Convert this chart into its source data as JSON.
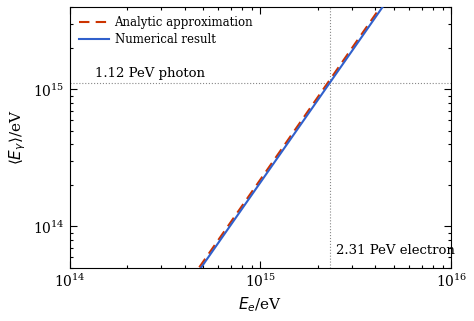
{
  "xlim": [
    100000000000000.0,
    1e+16
  ],
  "ylim": [
    50000000000000.0,
    4000000000000000.0
  ],
  "xlabel": "$E_e$/eV",
  "ylabel": "$\\langle E_\\gamma \\rangle$/eV",
  "legend_numerical": "Numerical result",
  "legend_analytic": "Analytic approximation",
  "annotation_photon": "1.12 PeV photon",
  "annotation_electron": "2.31 PeV electron",
  "vline_x": 2310000000000000.0,
  "hline_y": 1120000000000000.0,
  "numerical_color": "#3060cc",
  "analytic_color": "#cc3300",
  "dotted_color": "#888888",
  "bg_color": "#ffffff",
  "figsize": [
    4.74,
    3.21
  ],
  "dpi": 100,
  "x_num_start": 230000000000000.0,
  "x_num_end": 9800000000000000.0,
  "x_ana_start": 155000000000000.0,
  "x_ana_end": 9800000000000000.0,
  "A_num": 2.1e-16,
  "A_ana": 2.1e-16,
  "power": 2.0
}
